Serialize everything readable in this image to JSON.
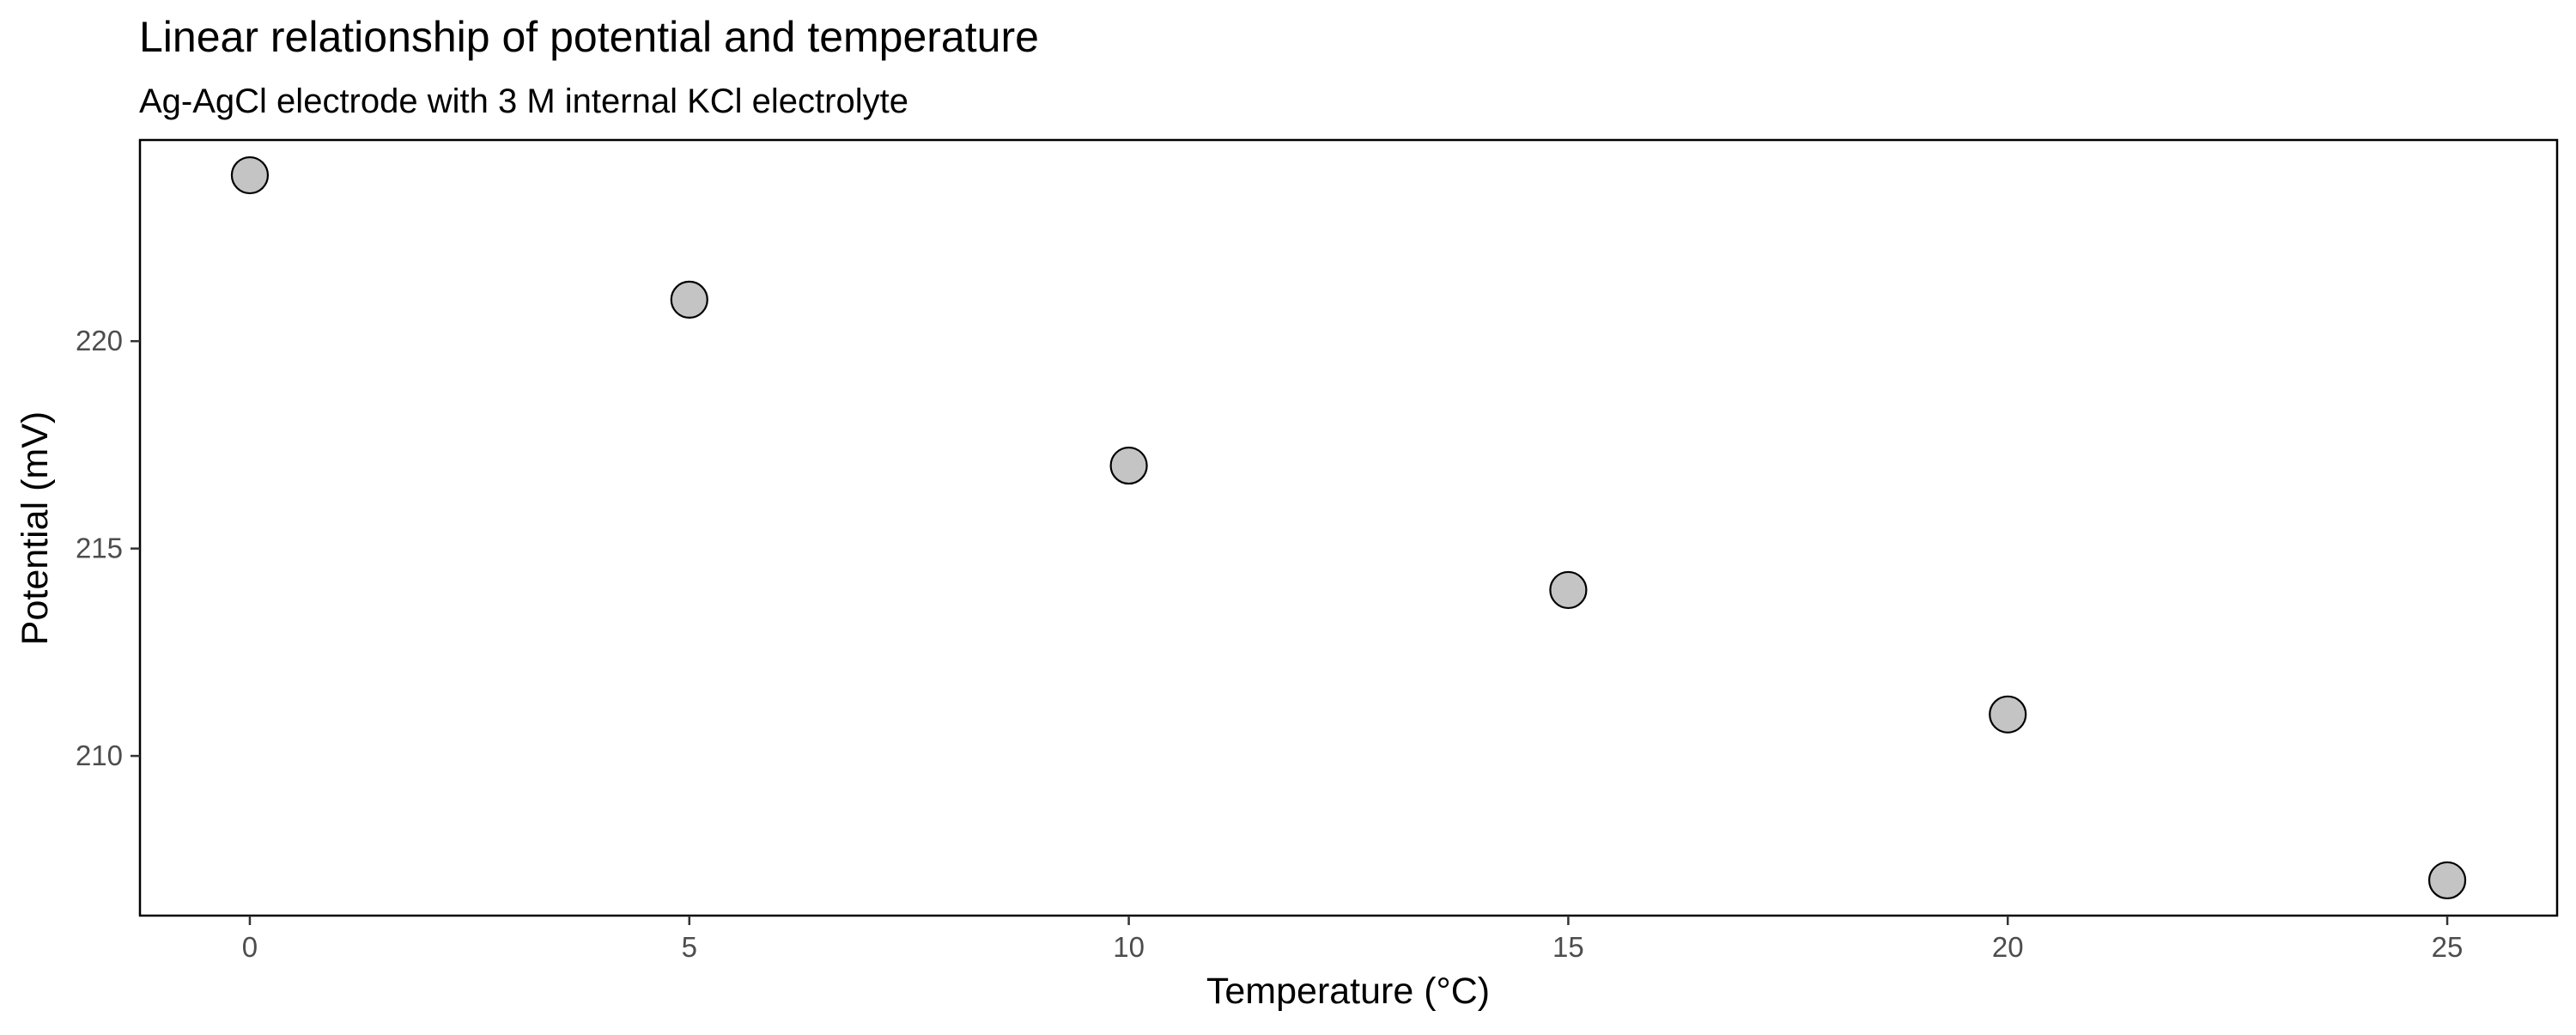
{
  "chart_data": {
    "type": "scatter",
    "title": "Linear relationship of potential and temperature",
    "subtitle": "Ag-AgCl electrode with 3 M internal KCl electrolyte",
    "xlabel": "Temperature (°C)",
    "ylabel": "Potential (mV)",
    "x": [
      0,
      5,
      10,
      15,
      20,
      25
    ],
    "y": [
      224,
      221,
      217,
      214,
      211,
      207
    ],
    "xlim": [
      -1.25,
      26.25
    ],
    "ylim": [
      206.15,
      224.85
    ],
    "x_ticks": [
      0,
      5,
      10,
      15,
      20,
      25
    ],
    "y_ticks": [
      210,
      215,
      220
    ],
    "grid": false,
    "legend": "none",
    "point_fill": "#c4c4c4",
    "point_stroke": "#000000",
    "panel_border": "#000000"
  }
}
